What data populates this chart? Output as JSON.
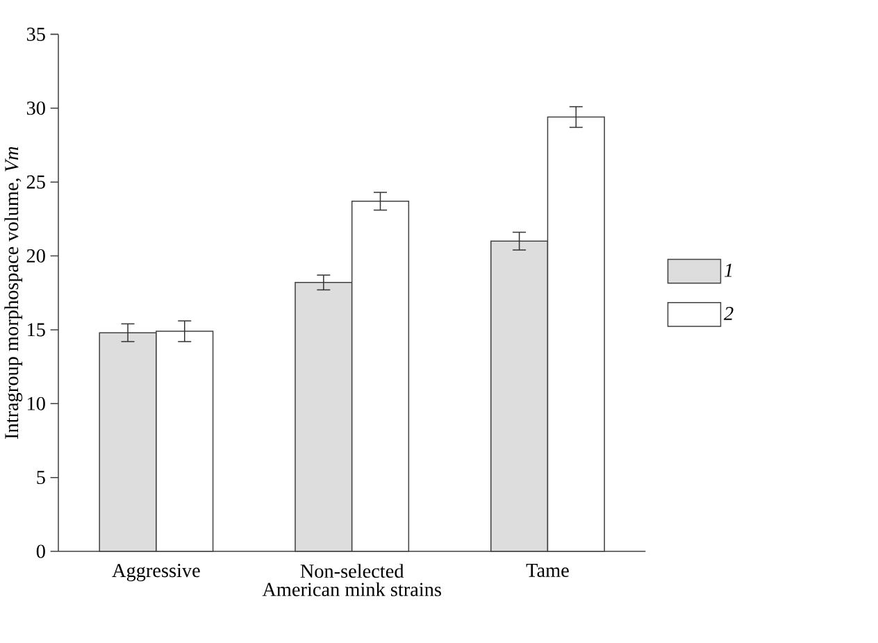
{
  "chart_data": {
    "type": "bar",
    "xlabel": "American mink strains",
    "ylabel": "Intragroup morphospace volume, *Vm*",
    "categories": [
      "Aggressive",
      "Non-selected",
      "Tame"
    ],
    "series": [
      {
        "name": "1",
        "color": "#dcdddc",
        "values": [
          14.8,
          18.2,
          21.0
        ],
        "errors": [
          0.6,
          0.5,
          0.6
        ]
      },
      {
        "name": "2",
        "color": "#ffffff",
        "values": [
          14.9,
          23.7,
          29.4
        ],
        "errors": [
          0.7,
          0.6,
          0.7
        ]
      }
    ],
    "ylim": [
      0,
      35
    ],
    "yticks": [
      0,
      5,
      10,
      15,
      20,
      25,
      30,
      35
    ],
    "grid": false,
    "legend": "right"
  }
}
